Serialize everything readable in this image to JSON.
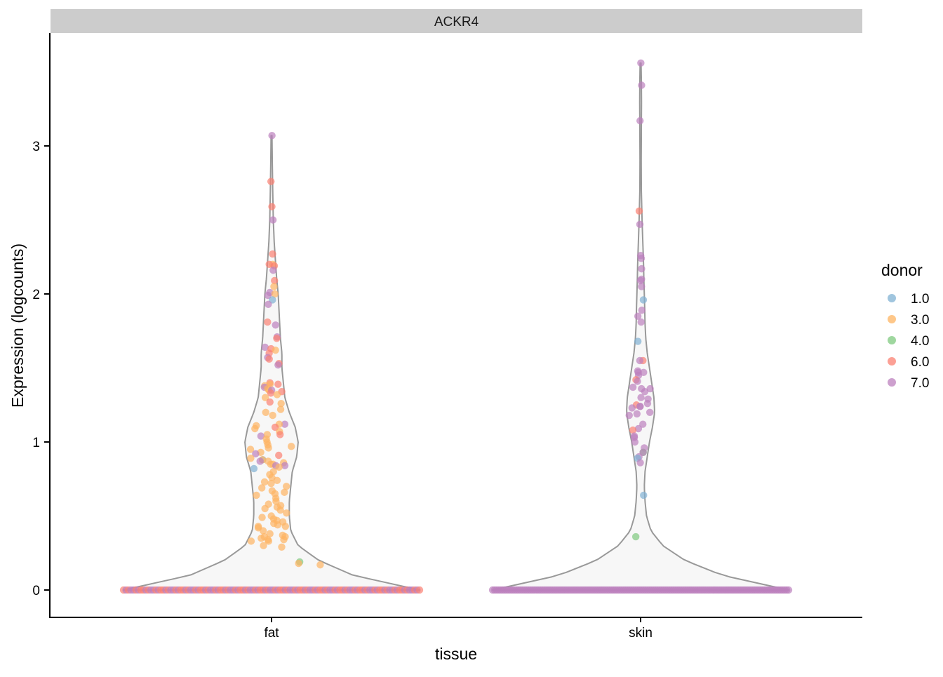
{
  "chart_data": {
    "type": "violin",
    "facet_title": "ACKR4",
    "xlabel": "tissue",
    "ylabel": "Expression (logcounts)",
    "ylim": [
      -0.18,
      3.72
    ],
    "y_ticks": [
      0,
      1,
      2,
      3
    ],
    "categories": [
      "fat",
      "skin"
    ],
    "grid": false,
    "legend": {
      "title": "donor",
      "placement": "right",
      "entries": [
        {
          "label": "1.0",
          "color": "#80b1d3"
        },
        {
          "label": "3.0",
          "color": "#fdb462"
        },
        {
          "label": "4.0",
          "color": "#7fc97f"
        },
        {
          "label": "6.0",
          "color": "#fb8072"
        },
        {
          "label": "7.0",
          "color": "#bc80bd"
        }
      ]
    },
    "violin_style": {
      "fill": "#f7f7f7",
      "stroke": "#999999"
    },
    "series": [
      {
        "category": "fat",
        "max": 3.07,
        "zero_count": 120,
        "zero_donors": [
          "6.0",
          "7.0",
          "6.0",
          "7.0",
          "7.0",
          "6.0",
          "7.0",
          "6.0"
        ],
        "density": [
          [
            0,
            1.0
          ],
          [
            0.1,
            0.55
          ],
          [
            0.2,
            0.32
          ],
          [
            0.3,
            0.18
          ],
          [
            0.4,
            0.13
          ],
          [
            0.5,
            0.12
          ],
          [
            0.6,
            0.12
          ],
          [
            0.7,
            0.13
          ],
          [
            0.8,
            0.14
          ],
          [
            0.9,
            0.17
          ],
          [
            1.0,
            0.18
          ],
          [
            1.1,
            0.16
          ],
          [
            1.2,
            0.12
          ],
          [
            1.3,
            0.09
          ],
          [
            1.4,
            0.08
          ],
          [
            1.5,
            0.07
          ],
          [
            1.6,
            0.07
          ],
          [
            1.7,
            0.06
          ],
          [
            1.8,
            0.055
          ],
          [
            1.9,
            0.05
          ],
          [
            2.0,
            0.045
          ],
          [
            2.1,
            0.035
          ],
          [
            2.2,
            0.028
          ],
          [
            2.35,
            0.018
          ],
          [
            2.5,
            0.012
          ],
          [
            2.7,
            0.008
          ],
          [
            2.9,
            0.005
          ],
          [
            3.07,
            0.003
          ]
        ],
        "points": [
          {
            "y": 3.07,
            "donor": "7.0"
          },
          {
            "y": 2.76,
            "donor": "6.0"
          },
          {
            "y": 2.59,
            "donor": "6.0"
          },
          {
            "y": 2.5,
            "donor": "7.0"
          },
          {
            "y": 2.27,
            "donor": "6.0"
          },
          {
            "y": 2.2,
            "donor": "3.0"
          },
          {
            "y": 2.2,
            "donor": "6.0"
          },
          {
            "y": 2.19,
            "donor": "6.0"
          },
          {
            "y": 2.16,
            "donor": "7.0"
          },
          {
            "y": 2.09,
            "donor": "6.0"
          },
          {
            "y": 2.05,
            "donor": "3.0"
          },
          {
            "y": 2.01,
            "donor": "7.0"
          },
          {
            "y": 2.0,
            "donor": "3.0"
          },
          {
            "y": 1.99,
            "donor": "7.0"
          },
          {
            "y": 1.96,
            "donor": "1.0"
          },
          {
            "y": 1.93,
            "donor": "7.0"
          },
          {
            "y": 1.81,
            "donor": "6.0"
          },
          {
            "y": 1.79,
            "donor": "7.0"
          },
          {
            "y": 1.71,
            "donor": "7.0"
          },
          {
            "y": 1.7,
            "donor": "6.0"
          },
          {
            "y": 1.64,
            "donor": "7.0"
          },
          {
            "y": 1.63,
            "donor": "6.0"
          },
          {
            "y": 1.62,
            "donor": "3.0"
          },
          {
            "y": 1.6,
            "donor": "6.0"
          },
          {
            "y": 1.57,
            "donor": "7.0"
          },
          {
            "y": 1.56,
            "donor": "6.0"
          },
          {
            "y": 1.53,
            "donor": "6.0"
          },
          {
            "y": 1.52,
            "donor": "7.0"
          },
          {
            "y": 1.4,
            "donor": "6.0"
          },
          {
            "y": 1.39,
            "donor": "3.0"
          },
          {
            "y": 1.39,
            "donor": "6.0"
          },
          {
            "y": 1.38,
            "donor": "3.0"
          },
          {
            "y": 1.37,
            "donor": "7.0"
          },
          {
            "y": 1.36,
            "donor": "3.0"
          },
          {
            "y": 1.35,
            "donor": "3.0"
          },
          {
            "y": 1.35,
            "donor": "7.0"
          },
          {
            "y": 1.34,
            "donor": "6.0"
          },
          {
            "y": 1.33,
            "donor": "6.0"
          },
          {
            "y": 1.32,
            "donor": "3.0"
          },
          {
            "y": 1.3,
            "donor": "3.0"
          },
          {
            "y": 1.27,
            "donor": "6.0"
          },
          {
            "y": 1.26,
            "donor": "3.0"
          },
          {
            "y": 1.22,
            "donor": "3.0"
          },
          {
            "y": 1.2,
            "donor": "3.0"
          },
          {
            "y": 1.18,
            "donor": "3.0"
          },
          {
            "y": 1.12,
            "donor": "7.0"
          },
          {
            "y": 1.12,
            "donor": "3.0"
          },
          {
            "y": 1.11,
            "donor": "3.0"
          },
          {
            "y": 1.1,
            "donor": "6.0"
          },
          {
            "y": 1.09,
            "donor": "3.0"
          },
          {
            "y": 1.07,
            "donor": "3.0"
          },
          {
            "y": 1.05,
            "donor": "3.0"
          },
          {
            "y": 1.05,
            "donor": "6.0"
          },
          {
            "y": 1.04,
            "donor": "7.0"
          },
          {
            "y": 1.02,
            "donor": "3.0"
          },
          {
            "y": 1.0,
            "donor": "3.0"
          },
          {
            "y": 0.98,
            "donor": "3.0"
          },
          {
            "y": 0.97,
            "donor": "3.0"
          },
          {
            "y": 0.96,
            "donor": "3.0"
          },
          {
            "y": 0.95,
            "donor": "3.0"
          },
          {
            "y": 0.93,
            "donor": "3.0"
          },
          {
            "y": 0.92,
            "donor": "7.0"
          },
          {
            "y": 0.91,
            "donor": "6.0"
          },
          {
            "y": 0.89,
            "donor": "3.0"
          },
          {
            "y": 0.88,
            "donor": "1.0"
          },
          {
            "y": 0.88,
            "donor": "3.0"
          },
          {
            "y": 0.87,
            "donor": "3.0"
          },
          {
            "y": 0.87,
            "donor": "7.0"
          },
          {
            "y": 0.86,
            "donor": "3.0"
          },
          {
            "y": 0.85,
            "donor": "3.0"
          },
          {
            "y": 0.85,
            "donor": "3.0"
          },
          {
            "y": 0.84,
            "donor": "7.0"
          },
          {
            "y": 0.84,
            "donor": "7.0"
          },
          {
            "y": 0.83,
            "donor": "3.0"
          },
          {
            "y": 0.82,
            "donor": "1.0"
          },
          {
            "y": 0.8,
            "donor": "3.0"
          },
          {
            "y": 0.78,
            "donor": "3.0"
          },
          {
            "y": 0.76,
            "donor": "3.0"
          },
          {
            "y": 0.74,
            "donor": "3.0"
          },
          {
            "y": 0.73,
            "donor": "3.0"
          },
          {
            "y": 0.72,
            "donor": "3.0"
          },
          {
            "y": 0.7,
            "donor": "3.0"
          },
          {
            "y": 0.69,
            "donor": "3.0"
          },
          {
            "y": 0.67,
            "donor": "3.0"
          },
          {
            "y": 0.66,
            "donor": "3.0"
          },
          {
            "y": 0.65,
            "donor": "3.0"
          },
          {
            "y": 0.64,
            "donor": "3.0"
          },
          {
            "y": 0.62,
            "donor": "3.0"
          },
          {
            "y": 0.6,
            "donor": "3.0"
          },
          {
            "y": 0.58,
            "donor": "3.0"
          },
          {
            "y": 0.57,
            "donor": "3.0"
          },
          {
            "y": 0.56,
            "donor": "3.0"
          },
          {
            "y": 0.55,
            "donor": "3.0"
          },
          {
            "y": 0.54,
            "donor": "3.0"
          },
          {
            "y": 0.52,
            "donor": "3.0"
          },
          {
            "y": 0.5,
            "donor": "3.0"
          },
          {
            "y": 0.49,
            "donor": "3.0"
          },
          {
            "y": 0.48,
            "donor": "3.0"
          },
          {
            "y": 0.47,
            "donor": "3.0"
          },
          {
            "y": 0.46,
            "donor": "3.0"
          },
          {
            "y": 0.45,
            "donor": "3.0"
          },
          {
            "y": 0.44,
            "donor": "3.0"
          },
          {
            "y": 0.43,
            "donor": "3.0"
          },
          {
            "y": 0.43,
            "donor": "3.0"
          },
          {
            "y": 0.42,
            "donor": "3.0"
          },
          {
            "y": 0.4,
            "donor": "3.0"
          },
          {
            "y": 0.38,
            "donor": "3.0"
          },
          {
            "y": 0.37,
            "donor": "3.0"
          },
          {
            "y": 0.36,
            "donor": "3.0"
          },
          {
            "y": 0.36,
            "donor": "3.0"
          },
          {
            "y": 0.35,
            "donor": "3.0"
          },
          {
            "y": 0.34,
            "donor": "3.0"
          },
          {
            "y": 0.34,
            "donor": "3.0"
          },
          {
            "y": 0.33,
            "donor": "3.0"
          },
          {
            "y": 0.33,
            "donor": "3.0"
          },
          {
            "y": 0.3,
            "donor": "3.0"
          },
          {
            "y": 0.29,
            "donor": "3.0"
          },
          {
            "y": 0.19,
            "donor": "4.0"
          },
          {
            "y": 0.18,
            "donor": "3.0"
          },
          {
            "y": 0.17,
            "donor": "3.0"
          }
        ]
      },
      {
        "category": "skin",
        "max": 3.56,
        "zero_count": 150,
        "zero_donors": [
          "7.0"
        ],
        "density": [
          [
            0,
            1.0
          ],
          [
            0.1,
            0.55
          ],
          [
            0.2,
            0.3
          ],
          [
            0.3,
            0.15
          ],
          [
            0.4,
            0.07
          ],
          [
            0.5,
            0.04
          ],
          [
            0.6,
            0.03
          ],
          [
            0.7,
            0.025
          ],
          [
            0.8,
            0.03
          ],
          [
            0.9,
            0.045
          ],
          [
            1.0,
            0.06
          ],
          [
            1.1,
            0.08
          ],
          [
            1.2,
            0.095
          ],
          [
            1.3,
            0.09
          ],
          [
            1.4,
            0.075
          ],
          [
            1.5,
            0.06
          ],
          [
            1.6,
            0.045
          ],
          [
            1.7,
            0.035
          ],
          [
            1.8,
            0.03
          ],
          [
            1.9,
            0.028
          ],
          [
            2.0,
            0.025
          ],
          [
            2.1,
            0.022
          ],
          [
            2.2,
            0.02
          ],
          [
            2.35,
            0.015
          ],
          [
            2.5,
            0.01
          ],
          [
            2.7,
            0.005
          ],
          [
            2.9,
            0.004
          ],
          [
            3.1,
            0.005
          ],
          [
            3.3,
            0.006
          ],
          [
            3.45,
            0.005
          ],
          [
            3.56,
            0.003
          ]
        ],
        "points": [
          {
            "y": 3.56,
            "donor": "7.0"
          },
          {
            "y": 3.41,
            "donor": "7.0"
          },
          {
            "y": 3.17,
            "donor": "7.0"
          },
          {
            "y": 2.56,
            "donor": "6.0"
          },
          {
            "y": 2.47,
            "donor": "7.0"
          },
          {
            "y": 2.26,
            "donor": "7.0"
          },
          {
            "y": 2.24,
            "donor": "7.0"
          },
          {
            "y": 2.17,
            "donor": "7.0"
          },
          {
            "y": 2.1,
            "donor": "7.0"
          },
          {
            "y": 2.09,
            "donor": "7.0"
          },
          {
            "y": 2.05,
            "donor": "7.0"
          },
          {
            "y": 1.96,
            "donor": "1.0"
          },
          {
            "y": 1.89,
            "donor": "7.0"
          },
          {
            "y": 1.85,
            "donor": "7.0"
          },
          {
            "y": 1.81,
            "donor": "7.0"
          },
          {
            "y": 1.68,
            "donor": "1.0"
          },
          {
            "y": 1.55,
            "donor": "6.0"
          },
          {
            "y": 1.55,
            "donor": "7.0"
          },
          {
            "y": 1.48,
            "donor": "7.0"
          },
          {
            "y": 1.47,
            "donor": "7.0"
          },
          {
            "y": 1.47,
            "donor": "7.0"
          },
          {
            "y": 1.45,
            "donor": "7.0"
          },
          {
            "y": 1.42,
            "donor": "6.0"
          },
          {
            "y": 1.41,
            "donor": "7.0"
          },
          {
            "y": 1.37,
            "donor": "7.0"
          },
          {
            "y": 1.36,
            "donor": "7.0"
          },
          {
            "y": 1.36,
            "donor": "7.0"
          },
          {
            "y": 1.34,
            "donor": "7.0"
          },
          {
            "y": 1.3,
            "donor": "7.0"
          },
          {
            "y": 1.29,
            "donor": "7.0"
          },
          {
            "y": 1.26,
            "donor": "7.0"
          },
          {
            "y": 1.25,
            "donor": "6.0"
          },
          {
            "y": 1.24,
            "donor": "7.0"
          },
          {
            "y": 1.24,
            "donor": "7.0"
          },
          {
            "y": 1.23,
            "donor": "7.0"
          },
          {
            "y": 1.2,
            "donor": "7.0"
          },
          {
            "y": 1.19,
            "donor": "7.0"
          },
          {
            "y": 1.18,
            "donor": "7.0"
          },
          {
            "y": 1.12,
            "donor": "7.0"
          },
          {
            "y": 1.09,
            "donor": "7.0"
          },
          {
            "y": 1.08,
            "donor": "6.0"
          },
          {
            "y": 1.04,
            "donor": "7.0"
          },
          {
            "y": 1.03,
            "donor": "7.0"
          },
          {
            "y": 1.0,
            "donor": "7.0"
          },
          {
            "y": 0.96,
            "donor": "7.0"
          },
          {
            "y": 0.93,
            "donor": "4.0"
          },
          {
            "y": 0.93,
            "donor": "7.0"
          },
          {
            "y": 0.9,
            "donor": "7.0"
          },
          {
            "y": 0.89,
            "donor": "1.0"
          },
          {
            "y": 0.86,
            "donor": "7.0"
          },
          {
            "y": 0.64,
            "donor": "1.0"
          },
          {
            "y": 0.36,
            "donor": "4.0"
          }
        ]
      }
    ]
  }
}
